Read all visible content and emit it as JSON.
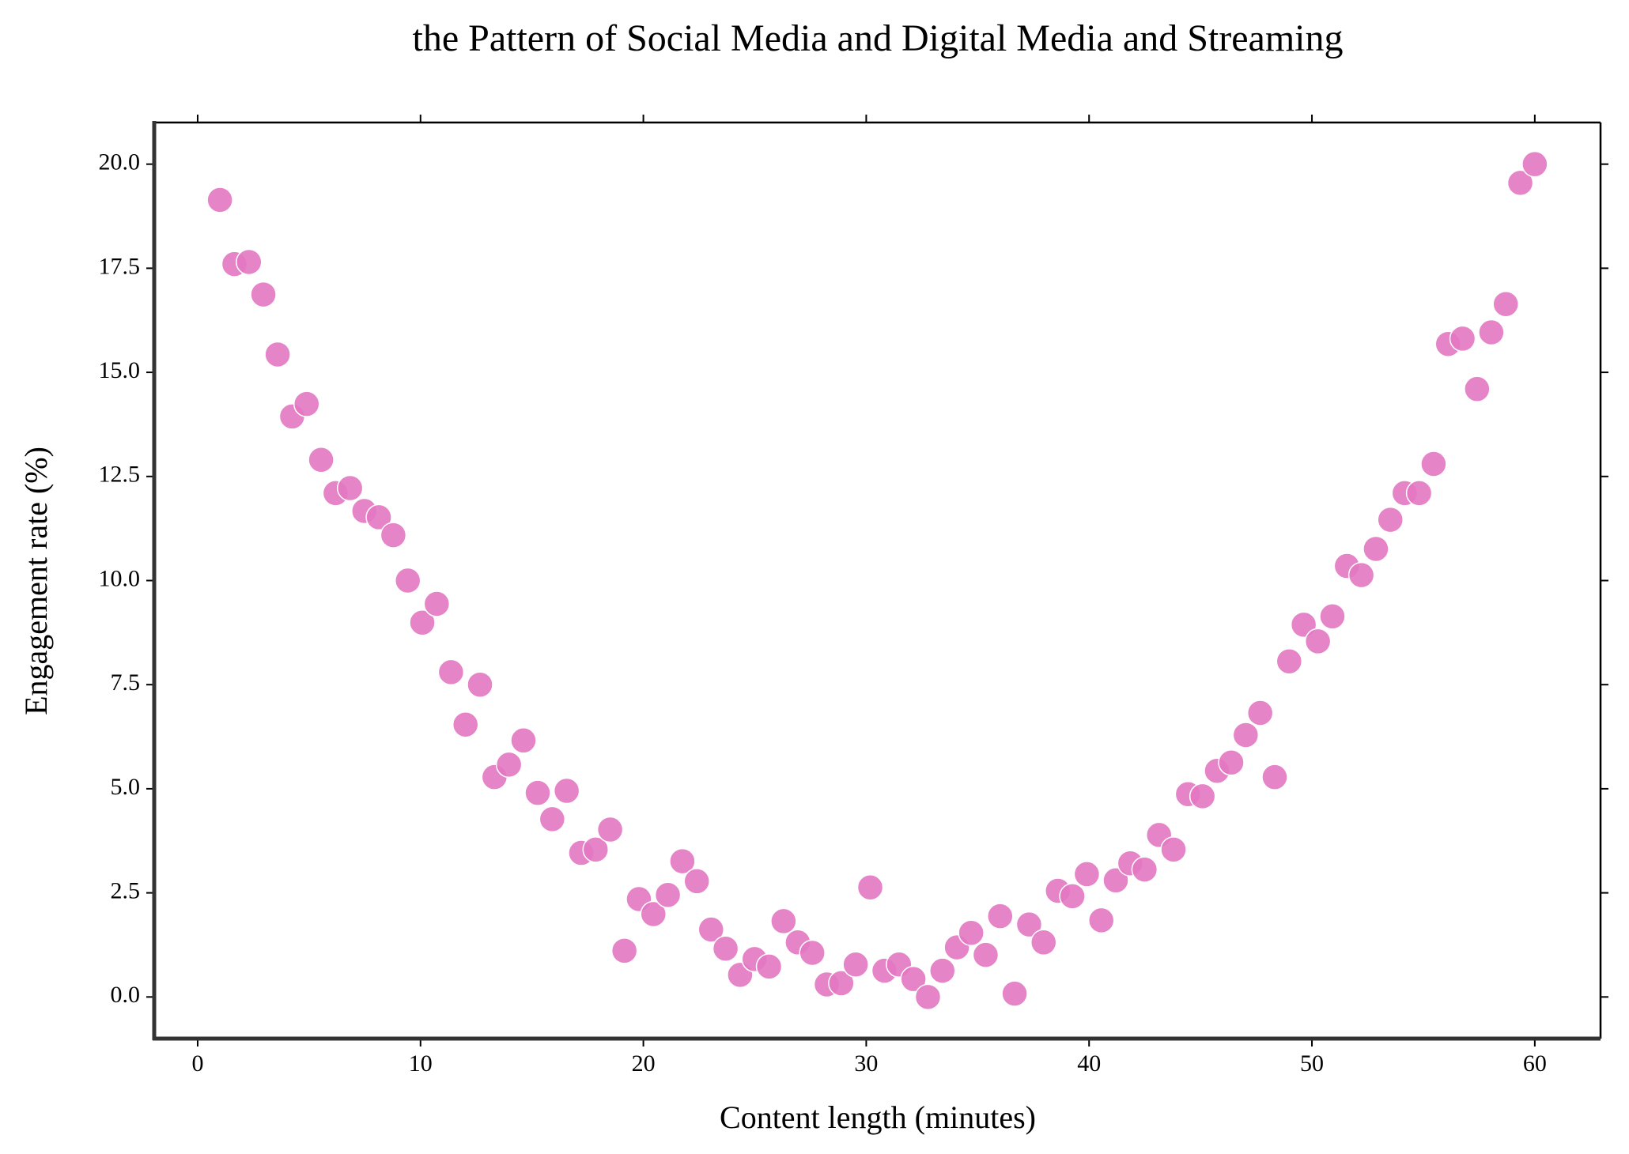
{
  "chart_data": {
    "type": "scatter",
    "title": "the Pattern of Social Media and Digital Media and Streaming",
    "x_label": "Content length (minutes)",
    "y_label": "Engagement rate (%)",
    "color": "#e377c2",
    "x": [
      1.0,
      1.65,
      2.3,
      2.95,
      3.59,
      4.24,
      4.89,
      5.54,
      6.19,
      6.84,
      7.48,
      8.13,
      8.78,
      9.43,
      10.08,
      10.73,
      11.37,
      12.02,
      12.67,
      13.32,
      13.97,
      14.62,
      15.26,
      15.91,
      16.56,
      17.21,
      17.86,
      18.51,
      19.15,
      19.8,
      20.45,
      21.1,
      21.75,
      22.4,
      23.04,
      23.69,
      24.34,
      24.99,
      25.64,
      26.29,
      26.93,
      27.58,
      28.23,
      28.88,
      29.53,
      30.18,
      30.82,
      31.47,
      32.12,
      32.77,
      33.42,
      34.07,
      34.71,
      35.36,
      36.01,
      36.66,
      37.31,
      37.96,
      38.6,
      39.25,
      39.9,
      40.55,
      41.2,
      41.85,
      42.49,
      43.14,
      43.79,
      44.44,
      45.09,
      45.74,
      46.38,
      47.03,
      47.68,
      48.33,
      48.98,
      49.63,
      50.27,
      50.92,
      51.57,
      52.22,
      52.87,
      53.52,
      54.16,
      54.81,
      55.46,
      56.11,
      56.76,
      57.41,
      58.05,
      58.7,
      59.35,
      60.0
    ],
    "values": [
      19.14,
      17.6,
      17.65,
      16.87,
      15.43,
      13.94,
      14.24,
      12.9,
      12.1,
      12.22,
      11.67,
      11.52,
      11.09,
      10.0,
      8.99,
      9.44,
      7.8,
      6.54,
      7.5,
      5.28,
      5.58,
      6.16,
      4.9,
      4.27,
      4.95,
      3.46,
      3.54,
      4.02,
      1.11,
      2.35,
      1.99,
      2.45,
      3.26,
      2.78,
      1.62,
      1.16,
      0.53,
      0.91,
      0.73,
      1.82,
      1.31,
      1.06,
      0.3,
      0.33,
      0.78,
      2.63,
      0.63,
      0.78,
      0.43,
      0.0,
      0.63,
      1.19,
      1.54,
      1.01,
      1.94,
      0.08,
      1.74,
      1.31,
      2.55,
      2.42,
      2.95,
      1.84,
      2.8,
      3.21,
      3.06,
      3.89,
      3.54,
      4.87,
      4.82,
      5.43,
      5.63,
      6.29,
      6.82,
      5.28,
      8.06,
      8.94,
      8.54,
      9.14,
      10.35,
      10.13,
      10.76,
      11.46,
      12.1,
      12.1,
      12.8,
      15.68,
      15.81,
      14.6,
      15.96,
      16.64,
      19.55,
      20.0
    ],
    "xlim": [
      -1.95,
      62.95
    ],
    "ylim": [
      -1,
      21
    ],
    "xticks": [
      0,
      10,
      20,
      30,
      40,
      50,
      60
    ],
    "yticks": [
      {
        "value": 0,
        "label": "0.0"
      },
      2.5,
      {
        "value": 5,
        "label": "5.0"
      },
      7.5,
      {
        "value": 10,
        "label": "10.0"
      },
      12.5,
      {
        "value": 15,
        "label": "15.0"
      },
      17.5,
      {
        "value": 20,
        "label": "20.0"
      }
    ]
  }
}
